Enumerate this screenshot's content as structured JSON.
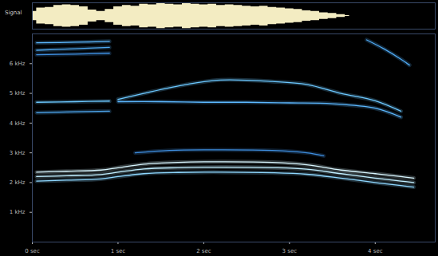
{
  "chart_data": {
    "type": "spectrogram",
    "signal_label": "Signal",
    "signal": {
      "color": "#f3ecc2",
      "ylim": [
        -1,
        1
      ],
      "x": [
        0.0,
        0.1,
        0.2,
        0.3,
        0.4,
        0.5,
        0.6,
        0.7,
        0.8,
        0.9,
        1.0,
        1.1,
        1.2,
        1.3,
        1.4,
        1.5,
        1.6,
        1.7,
        1.8,
        1.9,
        2.0,
        2.1,
        2.2,
        2.3,
        2.4,
        2.5,
        2.6,
        2.7,
        2.8,
        2.9,
        3.0,
        3.1,
        3.2,
        3.3,
        3.4,
        3.5,
        3.6,
        3.7
      ],
      "amplitude": [
        0.35,
        0.6,
        0.65,
        0.8,
        0.85,
        0.8,
        0.7,
        0.45,
        0.35,
        0.5,
        0.7,
        0.8,
        0.75,
        0.9,
        0.85,
        0.95,
        0.9,
        0.85,
        0.95,
        0.9,
        0.85,
        0.9,
        0.8,
        0.85,
        0.8,
        0.75,
        0.7,
        0.75,
        0.65,
        0.6,
        0.55,
        0.5,
        0.4,
        0.35,
        0.25,
        0.2,
        0.1,
        0.03
      ]
    },
    "xlim": [
      0,
      4.7
    ],
    "xticks": [
      {
        "value": 0,
        "label": "0 sec"
      },
      {
        "value": 1,
        "label": "1 sec"
      },
      {
        "value": 2,
        "label": "2 sec"
      },
      {
        "value": 3,
        "label": "3 sec"
      },
      {
        "value": 4,
        "label": "4 sec"
      }
    ],
    "ylim": [
      0,
      7
    ],
    "yticks": [
      {
        "value": 1,
        "label": "1 kHz"
      },
      {
        "value": 2,
        "label": "2 kHz"
      },
      {
        "value": 3,
        "label": "3 kHz"
      },
      {
        "value": 4,
        "label": "4 kHz"
      },
      {
        "value": 5,
        "label": "5 kHz"
      },
      {
        "value": 6,
        "label": "6 kHz"
      }
    ],
    "series": [
      {
        "color": "#d8f6ff",
        "x": [
          0.05,
          0.4,
          0.8,
          1.0,
          1.3,
          1.7,
          2.2,
          2.8,
          3.2,
          3.6,
          4.0,
          4.3,
          4.45
        ],
        "values": [
          2.35,
          2.38,
          2.42,
          2.5,
          2.62,
          2.68,
          2.7,
          2.68,
          2.6,
          2.42,
          2.3,
          2.2,
          2.15
        ]
      },
      {
        "color": "#bfeeff",
        "x": [
          0.05,
          0.4,
          0.8,
          1.0,
          1.3,
          1.7,
          2.2,
          2.8,
          3.2,
          3.6,
          4.0,
          4.3,
          4.45
        ],
        "values": [
          2.2,
          2.23,
          2.27,
          2.35,
          2.46,
          2.5,
          2.52,
          2.5,
          2.45,
          2.3,
          2.15,
          2.05,
          2.0
        ]
      },
      {
        "color": "#8fd8ff",
        "x": [
          0.05,
          0.4,
          0.8,
          1.0,
          1.3,
          1.7,
          2.2,
          2.8,
          3.2,
          3.6,
          4.0,
          4.3,
          4.45
        ],
        "values": [
          2.05,
          2.08,
          2.12,
          2.2,
          2.3,
          2.34,
          2.35,
          2.33,
          2.28,
          2.15,
          2.0,
          1.9,
          1.85
        ]
      },
      {
        "color": "#3f8fe0",
        "x": [
          1.2,
          1.6,
          2.2,
          2.8,
          3.2,
          3.4
        ],
        "values": [
          3.0,
          3.08,
          3.1,
          3.08,
          3.0,
          2.9
        ]
      },
      {
        "color": "#6cc8ff",
        "x": [
          0.05,
          0.5,
          0.9
        ],
        "values": [
          4.7,
          4.72,
          4.74
        ]
      },
      {
        "color": "#4fa8f0",
        "x": [
          0.05,
          0.5,
          0.9
        ],
        "values": [
          4.35,
          4.38,
          4.4
        ]
      },
      {
        "color": "#6cc8ff",
        "x": [
          1.0,
          1.3,
          1.8,
          2.2,
          2.8,
          3.2,
          3.6,
          4.0,
          4.3
        ],
        "values": [
          4.8,
          5.0,
          5.3,
          5.45,
          5.4,
          5.3,
          5.0,
          4.75,
          4.4
        ]
      },
      {
        "color": "#5cb8ff",
        "x": [
          1.0,
          1.5,
          2.0,
          2.5,
          3.0,
          3.5,
          4.0,
          4.3
        ],
        "values": [
          4.72,
          4.72,
          4.7,
          4.7,
          4.68,
          4.65,
          4.5,
          4.2
        ]
      },
      {
        "color": "#5cb8ff",
        "x": [
          0.05,
          0.5,
          0.9
        ],
        "values": [
          6.7,
          6.72,
          6.75
        ]
      },
      {
        "color": "#4fa8f0",
        "x": [
          0.05,
          0.5,
          0.9
        ],
        "values": [
          6.45,
          6.5,
          6.55
        ]
      },
      {
        "color": "#3f8fe0",
        "x": [
          0.05,
          0.5,
          0.9
        ],
        "values": [
          6.3,
          6.32,
          6.35
        ]
      },
      {
        "color": "#4fa8f0",
        "x": [
          3.9,
          4.1,
          4.3,
          4.4
        ],
        "values": [
          6.8,
          6.5,
          6.15,
          5.95
        ]
      }
    ]
  }
}
